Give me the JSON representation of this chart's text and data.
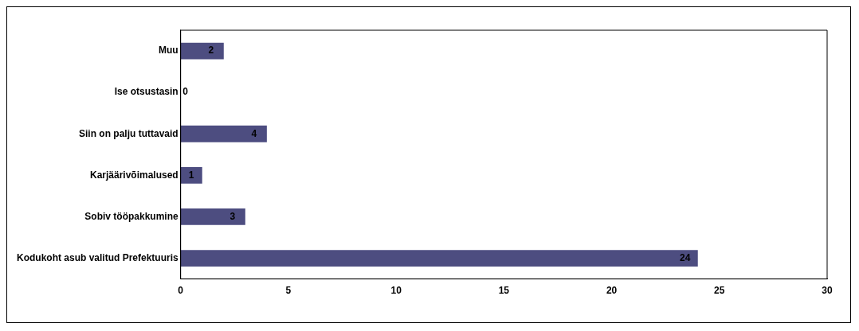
{
  "chart_data": {
    "type": "bar",
    "orientation": "horizontal",
    "categories": [
      "Muu",
      "Ise otsustasin",
      "Siin on palju tuttavaid",
      "Karjäärivõimalused",
      "Sobiv tööpakkumine",
      "Kodukoht asub valitud Prefektuuris"
    ],
    "values": [
      2,
      0,
      4,
      1,
      3,
      24
    ],
    "color": "#4d4d80",
    "xlim": [
      0,
      30
    ],
    "xticks": [
      0,
      5,
      10,
      15,
      20,
      25,
      30
    ],
    "grid": false,
    "legend": false,
    "data_labels": true
  }
}
